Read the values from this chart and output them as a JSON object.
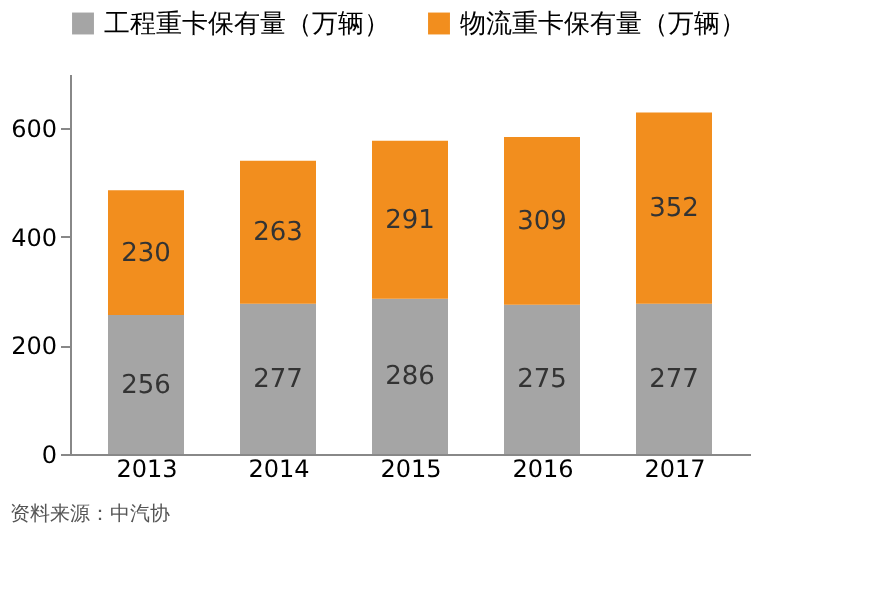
{
  "chart_data": {
    "type": "bar",
    "stacked": true,
    "categories": [
      "2013",
      "2014",
      "2015",
      "2016",
      "2017"
    ],
    "series": [
      {
        "name": "工程重卡保有量（万辆）",
        "color": "#a5a5a5",
        "values": [
          256,
          277,
          286,
          275,
          277
        ]
      },
      {
        "name": "物流重卡保有量（万辆）",
        "color": "#f28e1e",
        "values": [
          230,
          263,
          291,
          309,
          352
        ]
      }
    ],
    "ylim": [
      0,
      700
    ],
    "yticks": [
      0,
      200,
      400,
      600
    ],
    "grid": false,
    "legend": "top",
    "data_labels": true,
    "annotations": [
      "资料来源：中汽协"
    ]
  }
}
